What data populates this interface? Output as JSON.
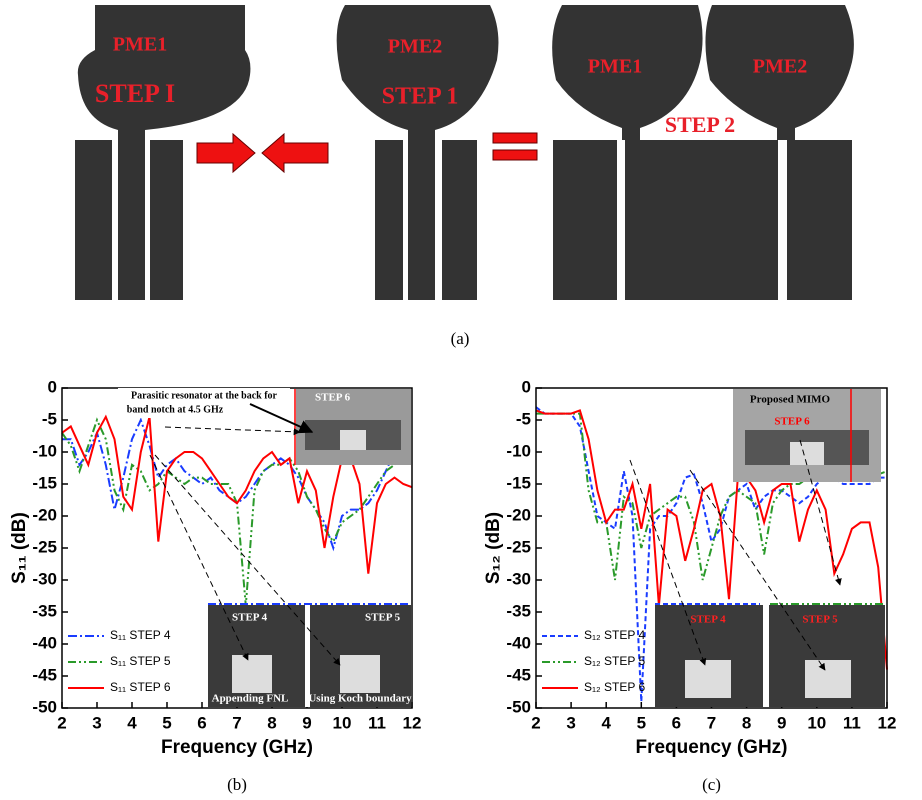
{
  "figure_a": {
    "labels": [
      "PME1",
      "STEP I",
      "PME2",
      "STEP 1",
      "PME1",
      "PME2",
      "STEP 2"
    ],
    "caption": "(a)"
  },
  "chart_data": [
    {
      "type": "line",
      "caption": "(b)",
      "x_label": "Frequency (GHz)",
      "y_label": "S₁₁ (dB)",
      "x": [
        2,
        2.25,
        2.5,
        2.75,
        3,
        3.25,
        3.5,
        3.75,
        4,
        4.25,
        4.5,
        4.75,
        5,
        5.25,
        5.5,
        5.75,
        6,
        6.25,
        6.5,
        6.75,
        7,
        7.25,
        7.5,
        7.75,
        8,
        8.25,
        8.5,
        8.75,
        9,
        9.25,
        9.5,
        9.75,
        10,
        10.25,
        10.5,
        10.75,
        11,
        11.25,
        11.5,
        11.75,
        12
      ],
      "xlim": [
        2,
        12
      ],
      "xticks": [
        2,
        3,
        4,
        5,
        6,
        7,
        8,
        9,
        10,
        11,
        12
      ],
      "ylim": [
        -50,
        0
      ],
      "yticks": [
        0,
        -5,
        -10,
        -15,
        -20,
        -25,
        -30,
        -35,
        -40,
        -45,
        -50
      ],
      "legend": "lower left",
      "series": [
        {
          "name": "S₁₁ STEP 4",
          "color": "#1a3cff",
          "linestyle": "dashdot",
          "values": [
            -8,
            -8,
            -12,
            -10,
            -7,
            -12,
            -19,
            -14,
            -8,
            -5,
            -9,
            -14,
            -12,
            -11,
            -13,
            -14,
            -15,
            -14,
            -16,
            -17,
            -18,
            -17,
            -15,
            -13,
            -12,
            -11,
            -12,
            -14,
            -17,
            -19,
            -21,
            -25,
            -20,
            -19,
            -19,
            -18,
            -16,
            -13,
            -10,
            -8,
            -8
          ]
        },
        {
          "name": "S₁₁ STEP 5",
          "color": "#2a9a2a",
          "linestyle": "dashdotdot",
          "values": [
            -7,
            -9,
            -13,
            -9,
            -5,
            -8,
            -16,
            -19,
            -12,
            -13,
            -16,
            -15,
            -13,
            -14,
            -15,
            -14,
            -14,
            -15,
            -15,
            -15,
            -18,
            -34,
            -16,
            -13,
            -12,
            -12,
            -11,
            -13,
            -17,
            -19,
            -22,
            -24,
            -21,
            -20,
            -19,
            -17,
            -15,
            -13,
            -12,
            -11,
            -10
          ]
        },
        {
          "name": "S₁₁ STEP 6",
          "color": "#ff0000",
          "linestyle": "solid",
          "values": [
            -7,
            -6,
            -9,
            -12,
            -7,
            -4.5,
            -8,
            -17,
            -19,
            -10,
            -4.5,
            -24,
            -13,
            -11,
            -10,
            -10,
            -11,
            -13,
            -15,
            -17,
            -18,
            -16,
            -13,
            -11,
            -10,
            -12,
            -11,
            -18,
            -13,
            -16,
            -25,
            -17,
            -11,
            -11,
            -15,
            -29,
            -18,
            -15,
            -14,
            -15,
            -15.5
          ]
        }
      ],
      "annotations": [
        "Parasitic resonator at the back for",
        "band notch at 4.5 GHz",
        "STEP 6",
        "STEP 4",
        "STEP 5",
        "Appending FNL",
        "Using Koch boundary"
      ]
    },
    {
      "type": "line",
      "caption": "(c)",
      "x_label": "Frequency (GHz)",
      "y_label": "S₁₂ (dB)",
      "x": [
        2,
        2.25,
        2.5,
        2.75,
        3,
        3.25,
        3.5,
        3.75,
        4,
        4.25,
        4.5,
        4.75,
        5,
        5.25,
        5.5,
        5.75,
        6,
        6.25,
        6.5,
        6.75,
        7,
        7.25,
        7.5,
        7.75,
        8,
        8.25,
        8.5,
        8.75,
        9,
        9.25,
        9.5,
        9.75,
        10,
        10.25,
        10.5,
        10.75,
        11,
        11.25,
        11.5,
        11.75,
        12
      ],
      "xlim": [
        2,
        12
      ],
      "xticks": [
        2,
        3,
        4,
        5,
        6,
        7,
        8,
        9,
        10,
        11,
        12
      ],
      "ylim": [
        -50,
        0
      ],
      "yticks": [
        0,
        -5,
        -10,
        -15,
        -20,
        -25,
        -30,
        -35,
        -40,
        -45,
        -50
      ],
      "legend": "lower left",
      "series": [
        {
          "name": "S₁₂ STEP 4",
          "color": "#1a3cff",
          "linestyle": "dashed",
          "values": [
            -3,
            -4,
            -4,
            -4,
            -4,
            -6,
            -13,
            -20,
            -21,
            -22,
            -13,
            -20,
            -49,
            -22,
            -20,
            -20,
            -18,
            -14,
            -13.5,
            -18,
            -24,
            -22,
            -17,
            -16,
            -15,
            -19,
            -17,
            -16,
            -16,
            -17,
            -18,
            -17,
            -15,
            -14,
            -14,
            -15,
            -15,
            -15,
            -15,
            -14,
            -14
          ]
        },
        {
          "name": "S₁₂ STEP 5",
          "color": "#2a9a2a",
          "linestyle": "dashdotdot",
          "values": [
            -4,
            -4,
            -4,
            -4,
            -4,
            -4,
            -16,
            -21,
            -21,
            -30,
            -17,
            -18,
            -25,
            -20,
            -19,
            -18,
            -17,
            -17,
            -21,
            -30,
            -25,
            -20,
            -17,
            -16,
            -17,
            -18,
            -26,
            -18,
            -16,
            -15,
            -15,
            -14,
            -14,
            -14,
            -14,
            -13.5,
            -13.5,
            -13.5,
            -13.5,
            -13.5,
            -13
          ]
        },
        {
          "name": "S₁₂ STEP 6",
          "color": "#ff0000",
          "linestyle": "solid",
          "values": [
            -3.5,
            -4,
            -4,
            -4,
            -4,
            -3.5,
            -8,
            -16,
            -21,
            -19,
            -19,
            -15,
            -22,
            -15,
            -34,
            -19,
            -20,
            -27,
            -22,
            -16,
            -15,
            -20,
            -33,
            -14,
            -14,
            -16,
            -21,
            -16,
            -15,
            -15,
            -24,
            -19,
            -16,
            -19,
            -29,
            -26,
            -22,
            -21,
            -21,
            -28,
            -44
          ]
        }
      ],
      "annotations": [
        "Proposed MIMO",
        "STEP 6",
        "STEP 4",
        "STEP 5"
      ]
    }
  ]
}
